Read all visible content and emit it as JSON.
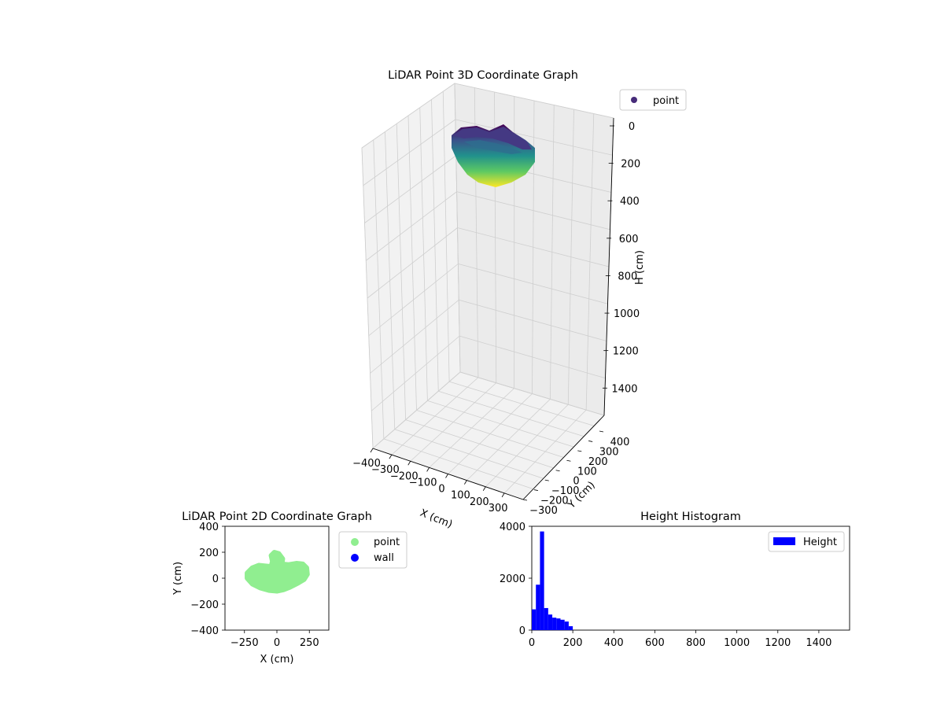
{
  "chart_data": [
    {
      "type": "scatter3d",
      "title": "LiDAR Point 3D Coordinate Graph",
      "xlabel": "X (cm)",
      "ylabel": "Y (cm)",
      "zlabel": "H (cm)",
      "x_ticks": [
        "−400",
        "−300",
        "−200",
        "−100",
        "0",
        "100",
        "200",
        "300"
      ],
      "y_ticks": [
        "−300",
        "−200",
        "−100",
        "0",
        "100",
        "200",
        "300",
        "400"
      ],
      "z_ticks": [
        "0",
        "200",
        "400",
        "600",
        "800",
        "1000",
        "1200",
        "1400"
      ],
      "xlim": [
        -400,
        400
      ],
      "ylim": [
        -300,
        400
      ],
      "zlim": [
        0,
        1550
      ],
      "z_inverted": true,
      "grid": true,
      "colormap": "viridis",
      "legend": {
        "placement": "upper-right-outside",
        "entries": [
          {
            "label": "point",
            "color": "#472c7a"
          }
        ]
      },
      "series": [
        {
          "name": "point",
          "description_x_range": [
            -250,
            250
          ],
          "description_y_range": [
            -100,
            200
          ],
          "description_h_range": [
            0,
            220
          ]
        }
      ]
    },
    {
      "type": "scatter",
      "title": "LiDAR Point 2D Coordinate Graph",
      "xlabel": "X (cm)",
      "ylabel": "Y (cm)",
      "x_ticks": [
        "−250",
        "0",
        "250"
      ],
      "x_tick_values": [
        -250,
        0,
        250
      ],
      "y_ticks": [
        "400",
        "200",
        "0",
        "−200",
        "−400"
      ],
      "y_tick_values": [
        400,
        200,
        0,
        -200,
        -400
      ],
      "xlim": [
        -400,
        400
      ],
      "ylim": [
        -400,
        400
      ],
      "legend": {
        "placement": "right-outside",
        "entries": [
          {
            "label": "point",
            "color": "#90ee90"
          },
          {
            "label": "wall",
            "color": "#0000ff"
          }
        ]
      },
      "series": [
        {
          "name": "point",
          "color": "#90ee90",
          "outline": [
            [
              -230,
              40
            ],
            [
              -190,
              80
            ],
            [
              -140,
              100
            ],
            [
              -90,
              95
            ],
            [
              -45,
              90
            ],
            [
              -35,
              130
            ],
            [
              -45,
              175
            ],
            [
              -20,
              200
            ],
            [
              15,
              190
            ],
            [
              45,
              150
            ],
            [
              40,
              110
            ],
            [
              90,
              105
            ],
            [
              150,
              115
            ],
            [
              200,
              110
            ],
            [
              230,
              80
            ],
            [
              235,
              30
            ],
            [
              210,
              -10
            ],
            [
              160,
              -40
            ],
            [
              100,
              -70
            ],
            [
              50,
              -90
            ],
            [
              0,
              -100
            ],
            [
              -60,
              -95
            ],
            [
              -130,
              -75
            ],
            [
              -190,
              -45
            ],
            [
              -230,
              0
            ]
          ]
        },
        {
          "name": "wall",
          "color": "#0000ff",
          "points": []
        }
      ]
    },
    {
      "type": "bar",
      "title": "Height Histogram",
      "x_ticks": [
        "0",
        "200",
        "400",
        "600",
        "800",
        "1000",
        "1200",
        "1400"
      ],
      "x_tick_values": [
        0,
        200,
        400,
        600,
        800,
        1000,
        1200,
        1400
      ],
      "y_ticks": [
        "0",
        "2000",
        "4000"
      ],
      "y_tick_values": [
        0,
        2000,
        4000
      ],
      "xlim": [
        0,
        1550
      ],
      "ylim": [
        0,
        4000
      ],
      "bin_width": 20,
      "bin_starts": [
        0,
        20,
        40,
        60,
        80,
        100,
        120,
        140,
        160,
        180
      ],
      "values": [
        800,
        1750,
        3800,
        850,
        600,
        480,
        450,
        400,
        330,
        150
      ],
      "color": "#0000ff",
      "legend": {
        "placement": "upper-right",
        "entries": [
          {
            "label": "Height",
            "color": "#0000ff"
          }
        ]
      }
    }
  ]
}
